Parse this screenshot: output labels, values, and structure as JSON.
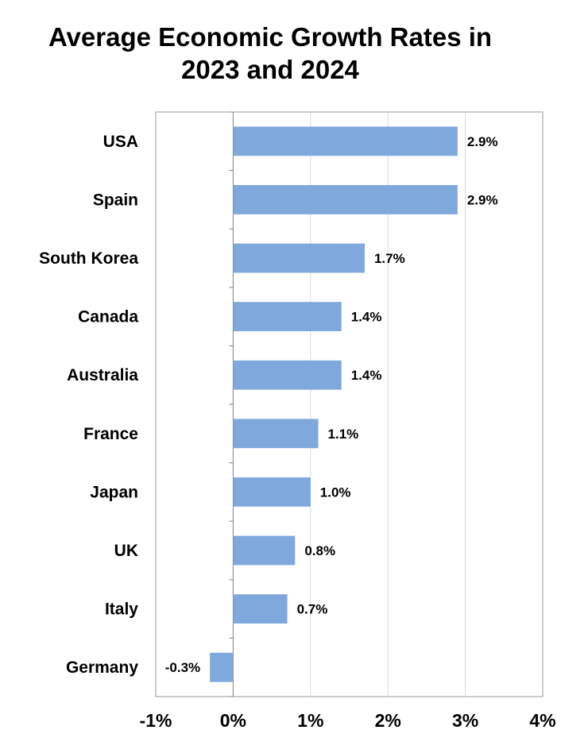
{
  "chart_data": {
    "type": "bar",
    "orientation": "horizontal",
    "title_lines": [
      "Average Economic Growth Rates in",
      "2023 and 2024"
    ],
    "categories": [
      "USA",
      "Spain",
      "South Korea",
      "Canada",
      "Australia",
      "France",
      "Japan",
      "UK",
      "Italy",
      "Germany"
    ],
    "values": [
      2.9,
      2.9,
      1.7,
      1.4,
      1.4,
      1.1,
      1.0,
      0.8,
      0.7,
      -0.3
    ],
    "value_labels": [
      "2.9%",
      "2.9%",
      "1.7%",
      "1.4%",
      "1.4%",
      "1.1%",
      "1.0%",
      "0.8%",
      "0.7%",
      "-0.3%"
    ],
    "x_ticks": [
      -1,
      0,
      1,
      2,
      3,
      4
    ],
    "x_tick_labels": [
      "-1%",
      "0%",
      "1%",
      "2%",
      "3%",
      "4%"
    ],
    "xlim": [
      -1,
      4
    ],
    "xlabel": "",
    "ylabel": "",
    "grid": "vertical",
    "legend": "none",
    "bar_color": "#7FA8DC",
    "grid_color": "#d9d9d9",
    "frame_color": "#9a9a9a"
  }
}
